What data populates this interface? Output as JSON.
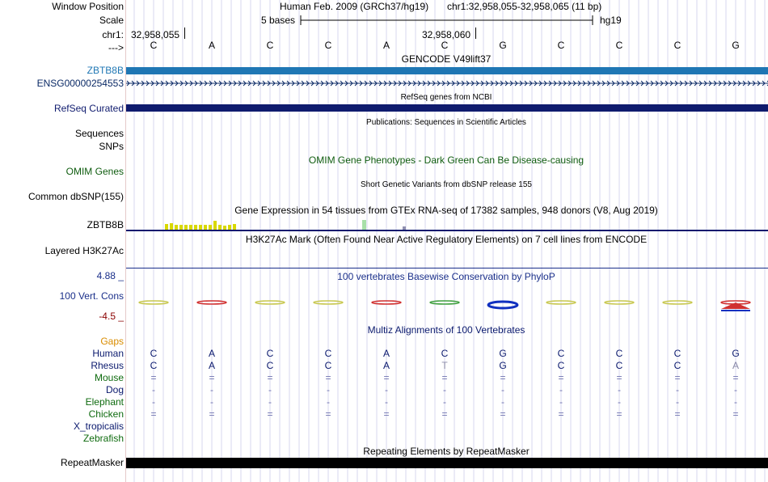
{
  "header": {
    "window_position_label": "Window Position",
    "scale_label": "Scale",
    "chrom_label": "chr1:",
    "arrow_label": "--->",
    "assembly_text": "Human Feb. 2009 (GRCh37/hg19)",
    "position_text": "chr1:32,958,055-32,958,065 (11 bp)",
    "scale_text": "5 bases",
    "scale_db": "hg19",
    "coord_start": "32,958,055",
    "coord_mid": "32,958,060"
  },
  "sequence": [
    "C",
    "A",
    "C",
    "C",
    "A",
    "C",
    "G",
    "C",
    "C",
    "C",
    "G"
  ],
  "tracks": {
    "gencode": {
      "title": "GENCODE V49lift37",
      "gene_label": "ZBTB8B",
      "transcript_label": "ENSG00000254553",
      "gene_color": "#1f77b4",
      "transcript_color": "#0b2a66"
    },
    "refseq": {
      "title": "RefSeq genes from NCBI",
      "label": "RefSeq Curated",
      "color": "#0f1b6e"
    },
    "publications": {
      "title": "Publications: Sequences in Scientific Articles",
      "label": "Sequences"
    },
    "snps": {
      "label": "SNPs"
    },
    "omim": {
      "title": "OMIM Gene Phenotypes - Dark Green Can Be Disease-causing",
      "label": "OMIM Genes",
      "color": "#0f5c0f"
    },
    "dbsnp": {
      "title": "Short Genetic Variants from dbSNP release 155",
      "label": "Common dbSNP(155)"
    },
    "gtex": {
      "title": "Gene Expression in 54 tissues from GTEx RNA-seq of 17382 samples, 948 donors (V8, Aug 2019)",
      "label": "ZBTB8B"
    },
    "h3k27ac": {
      "title": "H3K27Ac Mark (Often Found Near Active Regulatory Elements) on 7 cell lines from ENCODE",
      "label": "Layered H3K27Ac"
    },
    "phylop": {
      "title": "100 vertebrates Basewise Conservation by PhyloP",
      "label": "100 Vert. Cons",
      "max": "4.88 _",
      "min": "-4.5 _",
      "color": "#1a2f8a",
      "min_color": "#8b0000"
    },
    "multiz": {
      "title": "Multiz Alignments of 100 Vertebrates",
      "species": [
        {
          "name": "Gaps",
          "color": "#d98c00",
          "bases": []
        },
        {
          "name": "Human",
          "color": "#0b1a6e",
          "bases": [
            "C",
            "A",
            "C",
            "C",
            "A",
            "C",
            "G",
            "C",
            "C",
            "C",
            "G"
          ]
        },
        {
          "name": "Rhesus",
          "color": "#0b1a6e",
          "bases": [
            "C",
            "A",
            "C",
            "C",
            "A",
            "T",
            "G",
            "C",
            "C",
            "C",
            "A"
          ]
        },
        {
          "name": "Mouse",
          "color": "#0f6b0f",
          "bases": [
            "=",
            "=",
            "=",
            "=",
            "=",
            "=",
            "=",
            "=",
            "=",
            "=",
            "="
          ]
        },
        {
          "name": "Dog",
          "color": "#0b1a6e",
          "bases": [
            "-",
            "-",
            "-",
            "-",
            "-",
            "-",
            "-",
            "-",
            "-",
            "-",
            "-"
          ]
        },
        {
          "name": "Elephant",
          "color": "#0f6b0f",
          "bases": [
            "-",
            "-",
            "-",
            "-",
            "-",
            "-",
            "-",
            "-",
            "-",
            "-",
            "-"
          ]
        },
        {
          "name": "Chicken",
          "color": "#0f6b0f",
          "bases": [
            "=",
            "=",
            "=",
            "=",
            "=",
            "=",
            "=",
            "=",
            "=",
            "=",
            "="
          ]
        },
        {
          "name": "X_tropicalis",
          "color": "#0b1a6e",
          "bases": []
        },
        {
          "name": "Zebrafish",
          "color": "#0f6b0f",
          "bases": []
        }
      ]
    },
    "repeatmasker": {
      "title": "Repeating Elements by RepeatMasker",
      "label": "RepeatMasker"
    }
  }
}
